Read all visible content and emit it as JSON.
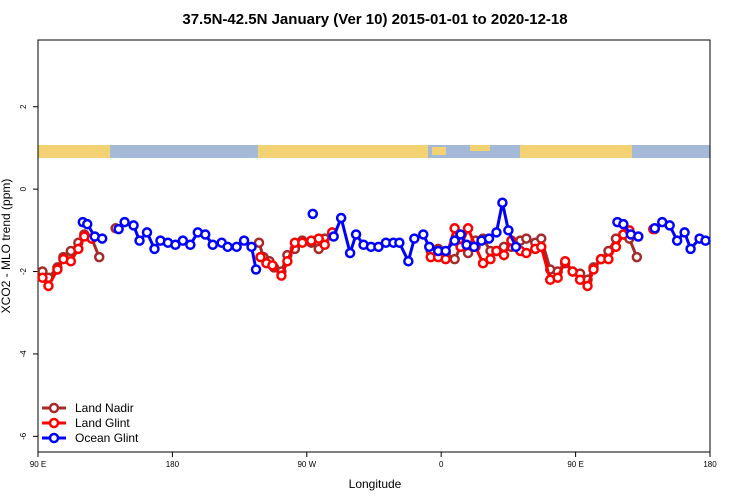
{
  "chart_data": {
    "type": "line",
    "title": "37.5N-42.5N January (Ver 10)   2015-01-01 to 2020-12-18",
    "x_label": "Longitude",
    "y_label": "XCO2 - MLO trend (ppm)",
    "xlim": [
      90,
      540
    ],
    "ylim": [
      -6.38,
      3.62
    ],
    "xticks": [
      {
        "value": 90,
        "label": "90 E"
      },
      180,
      {
        "value": 270,
        "label": "90 W"
      },
      {
        "value": 360,
        "label": "0"
      },
      {
        "value": 450,
        "label": "90 E"
      },
      {
        "value": 540,
        "label": "180"
      }
    ],
    "yticks": [
      -6,
      -4,
      -2,
      0,
      2
    ],
    "legend": "bottom-left",
    "series": [
      {
        "name": "Land Nadir",
        "color": "#a52a2a",
        "x": [
          93,
          97,
          103,
          107,
          112,
          117,
          121,
          126,
          131,
          null,
          142,
          null,
          238,
          241,
          245,
          248,
          253,
          257,
          262,
          267,
          273,
          278,
          282,
          287,
          null,
          353,
          358,
          363,
          369,
          373,
          378,
          383,
          388,
          393,
          397,
          402,
          407,
          413,
          417,
          423,
          427,
          433,
          438,
          443,
          448,
          453,
          458,
          462,
          467,
          472,
          477,
          482,
          486,
          491,
          null,
          503
        ],
        "values": [
          -2.0,
          -2.15,
          -1.9,
          -1.65,
          -1.5,
          -1.3,
          -1.1,
          -1.2,
          -1.65,
          null,
          -0.95,
          null,
          -1.3,
          -1.65,
          -1.75,
          -1.9,
          -2.0,
          -1.6,
          -1.45,
          -1.25,
          -1.3,
          -1.45,
          -1.2,
          -1.1,
          null,
          -1.5,
          -1.45,
          -1.55,
          -1.7,
          -1.4,
          -1.55,
          -1.25,
          -1.2,
          -1.5,
          -1.5,
          -1.4,
          -1.4,
          -1.25,
          -1.2,
          -1.3,
          -1.2,
          -1.95,
          -2.0,
          -1.8,
          -2.0,
          -2.05,
          -2.2,
          -1.9,
          -1.7,
          -1.5,
          -1.2,
          -1.1,
          -1.2,
          -1.65,
          null,
          -0.97
        ]
      },
      {
        "name": "Land Glint",
        "color": "#ff0000",
        "x": [
          93,
          97,
          103,
          107,
          112,
          117,
          121,
          126,
          null,
          239,
          243,
          247,
          253,
          257,
          262,
          267,
          273,
          278,
          282,
          287,
          null,
          353,
          358,
          363,
          369,
          373,
          378,
          383,
          388,
          393,
          397,
          402,
          407,
          413,
          417,
          423,
          427,
          433,
          438,
          443,
          448,
          453,
          458,
          462,
          467,
          472,
          477,
          482,
          486,
          null,
          502
        ],
        "values": [
          -2.15,
          -2.35,
          -1.95,
          -1.7,
          -1.75,
          -1.45,
          -1.15,
          -1.2,
          null,
          -1.65,
          -1.8,
          -1.85,
          -2.1,
          -1.75,
          -1.3,
          -1.3,
          -1.25,
          -1.2,
          -1.35,
          -1.05,
          null,
          -1.65,
          -1.65,
          -1.7,
          -0.95,
          -1.4,
          -0.95,
          -1.4,
          -1.8,
          -1.7,
          -1.5,
          -1.6,
          -1.25,
          -1.5,
          -1.55,
          -1.45,
          -1.4,
          -2.2,
          -2.15,
          -1.75,
          -2.0,
          -2.2,
          -2.35,
          -1.95,
          -1.7,
          -1.7,
          -1.4,
          -1.1,
          -1.0,
          null,
          -0.97
        ]
      },
      {
        "name": "Ocean Glint",
        "color": "#0000ff",
        "x": [
          120,
          123,
          128,
          133,
          null,
          144,
          148,
          154,
          158,
          163,
          168,
          172,
          177,
          182,
          187,
          192,
          197,
          202,
          207,
          213,
          217,
          223,
          228,
          233,
          236,
          null,
          274,
          null,
          288,
          293,
          299,
          303,
          308,
          313,
          318,
          323,
          328,
          332,
          338,
          342,
          348,
          352,
          358,
          363,
          369,
          373,
          377,
          382,
          387,
          392,
          397,
          401,
          405,
          410,
          null,
          478,
          482,
          487,
          492,
          null,
          503,
          508,
          513,
          518,
          523,
          527,
          533,
          537
        ],
        "values": [
          -0.8,
          -0.85,
          -1.15,
          -1.2,
          null,
          -0.97,
          -0.8,
          -0.88,
          -1.25,
          -1.05,
          -1.45,
          -1.25,
          -1.3,
          -1.35,
          -1.25,
          -1.35,
          -1.05,
          -1.1,
          -1.35,
          -1.3,
          -1.4,
          -1.4,
          -1.25,
          -1.4,
          -1.95,
          null,
          -0.6,
          null,
          -1.15,
          -0.7,
          -1.55,
          -1.1,
          -1.35,
          -1.4,
          -1.4,
          -1.3,
          -1.3,
          -1.3,
          -1.75,
          -1.2,
          -1.1,
          -1.4,
          -1.5,
          -1.5,
          -1.25,
          -1.1,
          -1.35,
          -1.4,
          -1.25,
          -1.2,
          -1.05,
          -0.33,
          -1.0,
          -1.4,
          null,
          -0.8,
          -0.85,
          -1.1,
          -1.15,
          null,
          -0.95,
          -0.8,
          -0.88,
          -1.25,
          -1.05,
          -1.45,
          -1.2,
          -1.25
        ]
      }
    ]
  }
}
